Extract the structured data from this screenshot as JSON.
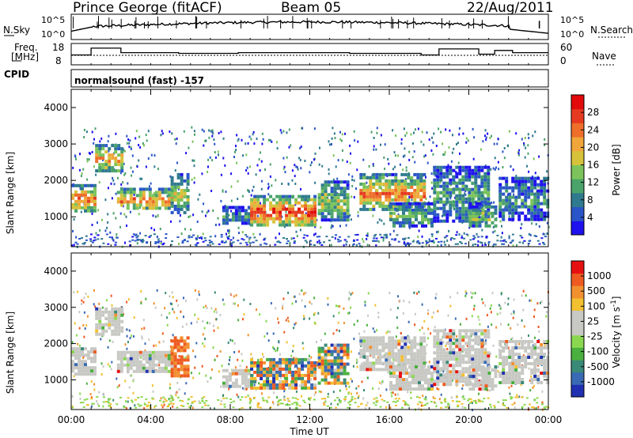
{
  "header": {
    "station": "Prince George (fitACF)",
    "beam": "Beam 05",
    "date": "22/Aug/2011"
  },
  "noise_panel": {
    "left_label": "N.Sky",
    "right_label": "N.Search",
    "left_ticks": [
      "10^5",
      "10^0"
    ],
    "right_ticks": [
      "10^5",
      "10^0"
    ]
  },
  "freq_panel": {
    "left_label_line1": "Freq.",
    "left_label_line2": "[MHz]",
    "right_label": "Nave",
    "left_ticks": [
      "18",
      "8"
    ],
    "right_ticks": [
      "60",
      "0"
    ]
  },
  "cpid_panel": {
    "label": "CPID",
    "text": "normalsound (fast) -157"
  },
  "chart_data": [
    {
      "type": "heatmap",
      "title": "",
      "ylabel": "Slant Range [km]",
      "xlabel": "",
      "ylim": [
        180,
        4500
      ],
      "xlim": [
        "00:00",
        "24:00"
      ],
      "y_ticks": [
        "1000",
        "2000",
        "3000",
        "4000"
      ],
      "colorbar": {
        "label": "Power [dB]",
        "ticks": [
          "4",
          "8",
          "12",
          "16",
          "20",
          "24",
          "28"
        ],
        "colors": [
          "#1f10ee",
          "#2a55c8",
          "#2f7a8e",
          "#4aa36a",
          "#7bc35a",
          "#d6c23a",
          "#f0a63a",
          "#ee6e2a",
          "#e63a20",
          "#e20a0a"
        ]
      }
    },
    {
      "type": "heatmap",
      "title": "",
      "ylabel": "Slant Range [km]",
      "xlabel": "Time UT",
      "ylim": [
        180,
        4500
      ],
      "xlim": [
        "00:00",
        "24:00"
      ],
      "y_ticks": [
        "1000",
        "2000",
        "3000",
        "4000"
      ],
      "x_ticks": [
        "00:00",
        "04:00",
        "08:00",
        "12:00",
        "16:00",
        "20:00",
        "00:00"
      ],
      "colorbar": {
        "label": "Velocity [m s^-1]",
        "ticks": [
          "1000",
          "500",
          "100",
          "25",
          "-25",
          "-100",
          "-500",
          "-1000"
        ],
        "colors": [
          "#2030b0",
          "#3a6ab4",
          "#3a8a78",
          "#4ab040",
          "#8ad850",
          "#c8c8c4",
          "#c8c8c4",
          "#f2c030",
          "#f29030",
          "#ee5a20",
          "#e61010"
        ]
      }
    }
  ]
}
